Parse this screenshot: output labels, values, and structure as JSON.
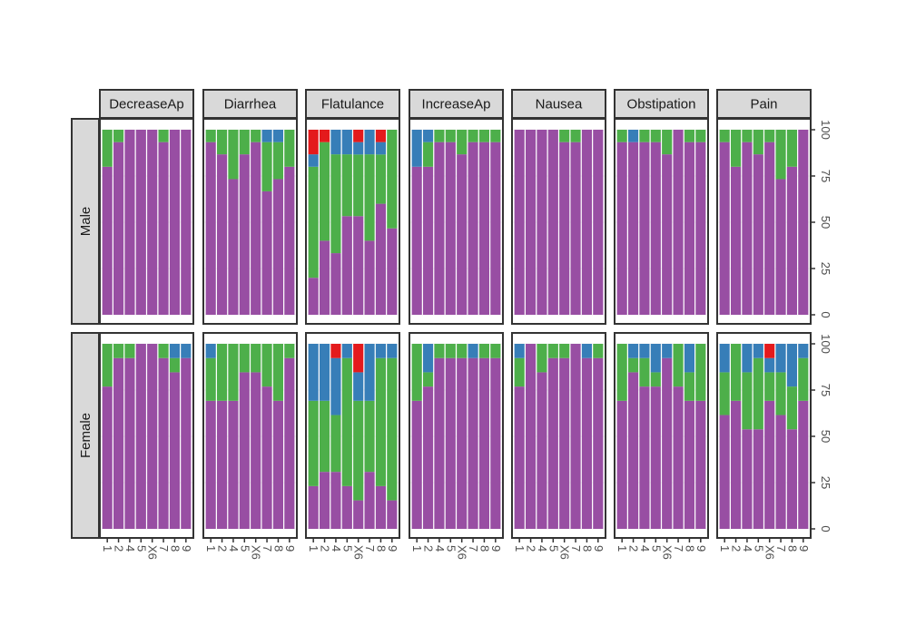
{
  "chart_data": {
    "type": "bar",
    "stacked": true,
    "faceted": true,
    "title": "",
    "xlabel": "",
    "ylabel": "",
    "ylim": [
      0,
      100
    ],
    "y_ticks": [
      "0",
      "25",
      "50",
      "75",
      "100"
    ],
    "y_tick_values": [
      0,
      25,
      50,
      75,
      100
    ],
    "y_axis_side": "right",
    "legend": "none",
    "categories": [
      "1",
      "2",
      "4",
      "5",
      "X6",
      "7",
      "8",
      "9"
    ],
    "column_facets": [
      "DecreaseAp",
      "Diarrhea",
      "Flatulance",
      "IncreaseAp",
      "Nausea",
      "Obstipation",
      "Pain"
    ],
    "row_facets": [
      "Male",
      "Female"
    ],
    "stack_order_top_to_bottom": [
      "red",
      "blue",
      "green",
      "purple"
    ],
    "colors": {
      "red": "#e41a1c",
      "blue": "#377eb8",
      "green": "#4daf4a",
      "purple": "#984ea3"
    },
    "panels": {
      "Male": {
        "DecreaseAp": [
          [
            0,
            0,
            20,
            80
          ],
          [
            0,
            0,
            6.7,
            93.3
          ],
          [
            0,
            0,
            0,
            100
          ],
          [
            0,
            0,
            0,
            100
          ],
          [
            0,
            0,
            0,
            100
          ],
          [
            0,
            0,
            6.7,
            93.3
          ],
          [
            0,
            0,
            0,
            100
          ],
          [
            0,
            0,
            0,
            100
          ]
        ],
        "Diarrhea": [
          [
            0,
            0,
            6.7,
            93.3
          ],
          [
            0,
            0,
            13.3,
            86.7
          ],
          [
            0,
            0,
            26.7,
            73.3
          ],
          [
            0,
            0,
            13.3,
            86.7
          ],
          [
            0,
            0,
            6.7,
            93.3
          ],
          [
            0,
            6.7,
            26.6,
            66.7
          ],
          [
            0,
            6.7,
            20,
            73.3
          ],
          [
            0,
            0,
            20,
            80
          ]
        ],
        "Flatulance": [
          [
            13.3,
            6.7,
            60,
            20
          ],
          [
            6.7,
            0,
            53.3,
            40
          ],
          [
            0,
            13.3,
            53.4,
            33.3
          ],
          [
            0,
            13.3,
            33.4,
            53.3
          ],
          [
            6.7,
            6.7,
            33.3,
            53.3
          ],
          [
            0,
            13.3,
            46.7,
            40
          ],
          [
            6.7,
            6.7,
            26.6,
            60
          ],
          [
            0,
            0,
            53.3,
            46.7
          ]
        ],
        "IncreaseAp": [
          [
            0,
            20,
            0,
            80
          ],
          [
            0,
            6.7,
            13.3,
            80
          ],
          [
            0,
            0,
            6.7,
            93.3
          ],
          [
            0,
            0,
            6.7,
            93.3
          ],
          [
            0,
            0,
            13.3,
            86.7
          ],
          [
            0,
            0,
            6.7,
            93.3
          ],
          [
            0,
            0,
            6.7,
            93.3
          ],
          [
            0,
            0,
            6.7,
            93.3
          ]
        ],
        "Nausea": [
          [
            0,
            0,
            0,
            100
          ],
          [
            0,
            0,
            0,
            100
          ],
          [
            0,
            0,
            0,
            100
          ],
          [
            0,
            0,
            0,
            100
          ],
          [
            0,
            0,
            6.7,
            93.3
          ],
          [
            0,
            0,
            6.7,
            93.3
          ],
          [
            0,
            0,
            0,
            100
          ],
          [
            0,
            0,
            0,
            100
          ]
        ],
        "Obstipation": [
          [
            0,
            0,
            6.7,
            93.3
          ],
          [
            0,
            6.7,
            0,
            93.3
          ],
          [
            0,
            0,
            6.7,
            93.3
          ],
          [
            0,
            0,
            6.7,
            93.3
          ],
          [
            0,
            0,
            13.3,
            86.7
          ],
          [
            0,
            0,
            0,
            100
          ],
          [
            0,
            0,
            6.7,
            93.3
          ],
          [
            0,
            0,
            6.7,
            93.3
          ]
        ],
        "Pain": [
          [
            0,
            0,
            6.7,
            93.3
          ],
          [
            0,
            0,
            20,
            80
          ],
          [
            0,
            0,
            6.7,
            93.3
          ],
          [
            0,
            0,
            13.3,
            86.7
          ],
          [
            0,
            0,
            6.7,
            93.3
          ],
          [
            0,
            0,
            26.7,
            73.3
          ],
          [
            0,
            0,
            20,
            80
          ],
          [
            0,
            0,
            0,
            100
          ]
        ]
      },
      "Female": {
        "DecreaseAp": [
          [
            0,
            0,
            23.1,
            76.9
          ],
          [
            0,
            0,
            7.7,
            92.3
          ],
          [
            0,
            0,
            7.7,
            92.3
          ],
          [
            0,
            0,
            0,
            100
          ],
          [
            0,
            0,
            0,
            100
          ],
          [
            0,
            0,
            7.7,
            92.3
          ],
          [
            0,
            7.7,
            7.7,
            84.6
          ],
          [
            0,
            7.7,
            0,
            92.3
          ]
        ],
        "Diarrhea": [
          [
            0,
            7.7,
            23.1,
            69.2
          ],
          [
            0,
            0,
            30.8,
            69.2
          ],
          [
            0,
            0,
            30.8,
            69.2
          ],
          [
            0,
            0,
            15.4,
            84.6
          ],
          [
            0,
            0,
            15.4,
            84.6
          ],
          [
            0,
            0,
            23.1,
            76.9
          ],
          [
            0,
            0,
            30.8,
            69.2
          ],
          [
            0,
            0,
            7.7,
            92.3
          ]
        ],
        "Flatulance": [
          [
            0,
            30.8,
            46.1,
            23.1
          ],
          [
            0,
            30.8,
            38.4,
            30.8
          ],
          [
            7.7,
            30.8,
            30.7,
            30.8
          ],
          [
            0,
            7.7,
            69.2,
            23.1
          ],
          [
            15.4,
            15.4,
            53.8,
            15.4
          ],
          [
            0,
            30.8,
            38.4,
            30.8
          ],
          [
            0,
            7.7,
            69.2,
            23.1
          ],
          [
            0,
            7.7,
            76.9,
            15.4
          ]
        ],
        "IncreaseAp": [
          [
            0,
            0,
            30.8,
            69.2
          ],
          [
            0,
            15.4,
            7.7,
            76.9
          ],
          [
            0,
            0,
            7.7,
            92.3
          ],
          [
            0,
            0,
            7.7,
            92.3
          ],
          [
            0,
            0,
            7.7,
            92.3
          ],
          [
            0,
            7.7,
            0,
            92.3
          ],
          [
            0,
            0,
            7.7,
            92.3
          ],
          [
            0,
            0,
            7.7,
            92.3
          ]
        ],
        "Nausea": [
          [
            0,
            7.7,
            15.4,
            76.9
          ],
          [
            0,
            0,
            0,
            100
          ],
          [
            0,
            0,
            15.4,
            84.6
          ],
          [
            0,
            0,
            7.7,
            92.3
          ],
          [
            0,
            0,
            7.7,
            92.3
          ],
          [
            0,
            0,
            0,
            100
          ],
          [
            0,
            7.7,
            0,
            92.3
          ],
          [
            0,
            0,
            7.7,
            92.3
          ]
        ],
        "Obstipation": [
          [
            0,
            0,
            30.8,
            69.2
          ],
          [
            0,
            7.7,
            7.7,
            84.6
          ],
          [
            0,
            7.7,
            15.4,
            76.9
          ],
          [
            0,
            15.4,
            7.7,
            76.9
          ],
          [
            0,
            7.7,
            0,
            92.3
          ],
          [
            0,
            0,
            23.1,
            76.9
          ],
          [
            0,
            15.4,
            15.4,
            69.2
          ],
          [
            0,
            0,
            30.8,
            69.2
          ]
        ],
        "Pain": [
          [
            0,
            15.4,
            23.1,
            61.5
          ],
          [
            0,
            0,
            30.8,
            69.2
          ],
          [
            0,
            15.4,
            30.8,
            53.8
          ],
          [
            0,
            7.7,
            38.5,
            53.8
          ],
          [
            7.7,
            7.7,
            15.4,
            69.2
          ],
          [
            0,
            15.4,
            23.1,
            61.5
          ],
          [
            0,
            23.1,
            23.1,
            53.8
          ],
          [
            0,
            7.7,
            23.1,
            69.2
          ]
        ]
      }
    }
  }
}
